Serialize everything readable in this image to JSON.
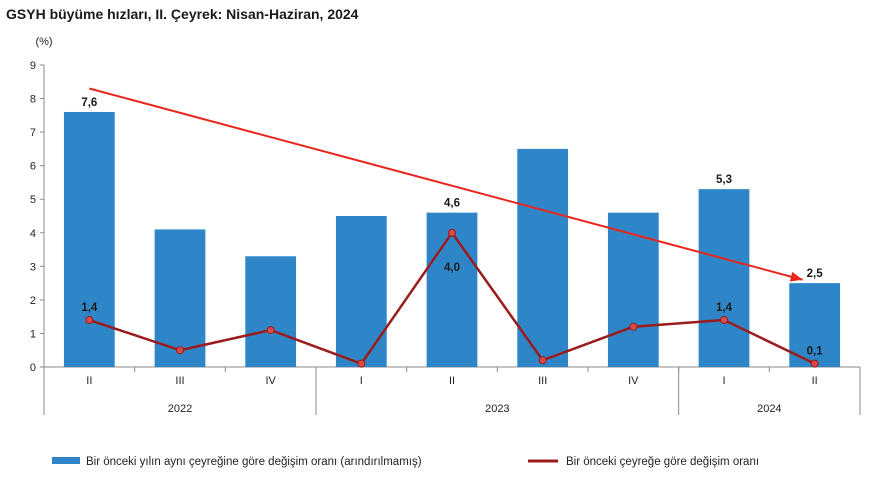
{
  "title": "GSYH büyüme hızları, II. Çeyrek: Nisan-Haziran, 2024",
  "chart_data": {
    "type": "bar",
    "ylabel": "(%)",
    "ylim": [
      0,
      9
    ],
    "yticks": [
      0,
      1,
      2,
      3,
      4,
      5,
      6,
      7,
      8,
      9
    ],
    "categories": [
      "II",
      "III",
      "IV",
      "I",
      "II",
      "III",
      "IV",
      "I",
      "II"
    ],
    "year_groups": [
      {
        "label": "2022",
        "count": 3
      },
      {
        "label": "2023",
        "count": 4
      },
      {
        "label": "2024",
        "count": 2
      }
    ],
    "series": [
      {
        "name": "Bir önceki yılın aynı çeyreğine göre değişim oranı (arındırılmamış)",
        "type": "bar",
        "color": "#2e86c8",
        "values": [
          7.6,
          4.1,
          3.3,
          4.5,
          4.6,
          6.5,
          4.6,
          5.3,
          2.5
        ],
        "labels": [
          "7,6",
          "",
          "",
          "",
          "4,6",
          "",
          "",
          "5,3",
          "2,5"
        ]
      },
      {
        "name": "Bir önceki çeyreğe göre değişim oranı",
        "type": "line",
        "color": "#9b1c1c",
        "values": [
          1.4,
          0.5,
          1.1,
          0.1,
          4.0,
          0.2,
          1.2,
          1.4,
          0.1
        ],
        "labels": [
          "1,4",
          "",
          "",
          "",
          "4,0",
          "",
          "",
          "1,4",
          "0,1"
        ]
      }
    ],
    "trend_arrow": {
      "color": "#e8261d",
      "from": {
        "index": 0,
        "value": 8.3
      },
      "to": {
        "index": 8,
        "value": 2.6
      }
    },
    "legend_position": "bottom"
  }
}
